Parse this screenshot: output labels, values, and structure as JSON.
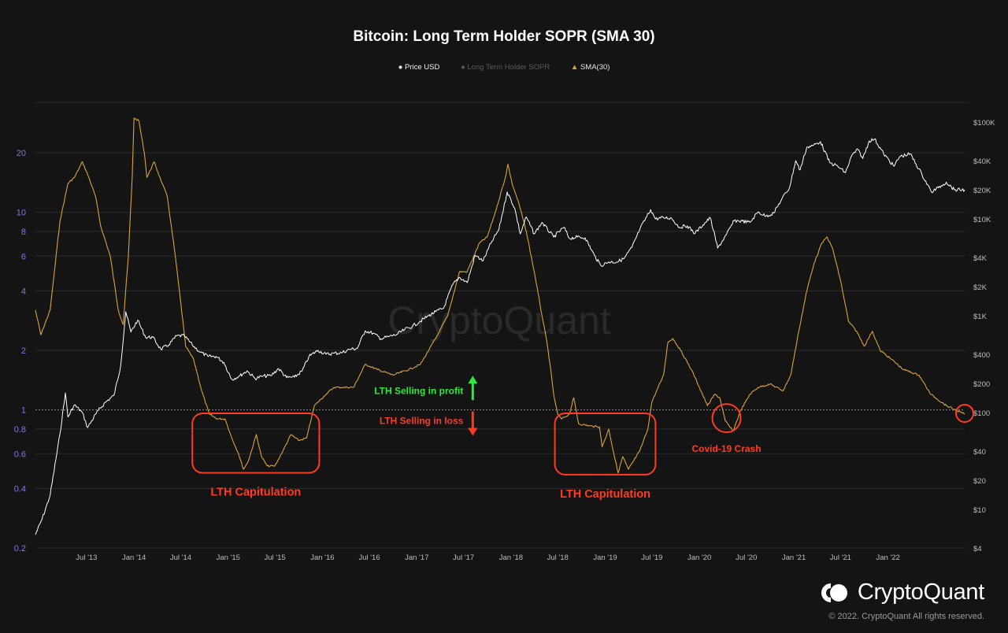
{
  "title": "Bitcoin: Long Term Holder SOPR (SMA 30)",
  "legend": {
    "price": "Price USD",
    "sopr": "Long Term Holder SOPR",
    "sma": "SMA(30)"
  },
  "brand": "CryptoQuant",
  "copyright": "© 2022. CryptoQuant All rights reserved.",
  "watermark": "CryptoQuant",
  "colors": {
    "background": "#141414",
    "grid": "#2c2c2c",
    "price_line": "#ffffff",
    "sma_line": "#d9a23c",
    "left_axis_labels": "#7f78e8",
    "annotation_red": "#ff3b22",
    "profit_green": "#2ee83c",
    "loss_red": "#ff3b22"
  },
  "chart_data": {
    "type": "line",
    "x_axis": {
      "ticks": [
        "Jul '13",
        "Jan '14",
        "Jul '14",
        "Jan '15",
        "Jul '15",
        "Jan '16",
        "Jul '16",
        "Jan '17",
        "Jul '17",
        "Jan '18",
        "Jul '18",
        "Jan '19",
        "Jul '19",
        "Jan '20",
        "Jul '20",
        "Jan '21",
        "Jul '21",
        "Jan '22"
      ],
      "range": [
        "2012-12-15",
        "2022-10-25"
      ]
    },
    "y_left": {
      "scale": "log",
      "ticks": [
        "20",
        "10",
        "8",
        "6",
        "4",
        "2",
        "1",
        "0.8",
        "0.6",
        "0.4",
        "0.2"
      ],
      "range": [
        0.2,
        36
      ]
    },
    "y_right": {
      "scale": "log",
      "ticks": [
        "$100K",
        "$40K",
        "$20K",
        "$10K",
        "$4K",
        "$2K",
        "$1K",
        "$400",
        "$200",
        "$100",
        "$40",
        "$20",
        "$10",
        "$4"
      ],
      "range": [
        4,
        160000
      ]
    },
    "reference_line": 1,
    "series": [
      {
        "name": "SMA(30)",
        "axis": "left",
        "points": [
          [
            "2012-12-15",
            3.2
          ],
          [
            "2013-01-05",
            2.4
          ],
          [
            "2013-02-10",
            3.2
          ],
          [
            "2013-03-20",
            9
          ],
          [
            "2013-04-20",
            14
          ],
          [
            "2013-05-15",
            15
          ],
          [
            "2013-06-15",
            18
          ],
          [
            "2013-07-10",
            15
          ],
          [
            "2013-08-05",
            12
          ],
          [
            "2013-08-25",
            8.5
          ],
          [
            "2013-10-01",
            6
          ],
          [
            "2013-11-01",
            3.2
          ],
          [
            "2013-11-20",
            2.7
          ],
          [
            "2013-12-10",
            6
          ],
          [
            "2013-12-25",
            15
          ],
          [
            "2014-01-01",
            30
          ],
          [
            "2014-01-20",
            29
          ],
          [
            "2014-02-10",
            20
          ],
          [
            "2014-02-20",
            15
          ],
          [
            "2014-03-20",
            18
          ],
          [
            "2014-04-20",
            14
          ],
          [
            "2014-05-10",
            12
          ],
          [
            "2014-06-10",
            6
          ],
          [
            "2014-07-01",
            3.5
          ],
          [
            "2014-07-20",
            2.1
          ],
          [
            "2014-08-20",
            1.8
          ],
          [
            "2014-09-20",
            1.25
          ],
          [
            "2014-10-20",
            0.95
          ],
          [
            "2014-11-20",
            0.9
          ],
          [
            "2014-12-20",
            0.9
          ],
          [
            "2015-01-15",
            0.72
          ],
          [
            "2015-02-10",
            0.6
          ],
          [
            "2015-03-01",
            0.5
          ],
          [
            "2015-03-20",
            0.55
          ],
          [
            "2015-04-20",
            0.75
          ],
          [
            "2015-05-10",
            0.58
          ],
          [
            "2015-06-01",
            0.52
          ],
          [
            "2015-07-01",
            0.52
          ],
          [
            "2015-08-01",
            0.62
          ],
          [
            "2015-09-01",
            0.75
          ],
          [
            "2015-10-01",
            0.7
          ],
          [
            "2015-11-01",
            0.72
          ],
          [
            "2015-12-01",
            1.05
          ],
          [
            "2016-01-15",
            1.2
          ],
          [
            "2016-02-15",
            1.3
          ],
          [
            "2016-03-20",
            1.3
          ],
          [
            "2016-05-01",
            1.3
          ],
          [
            "2016-06-15",
            1.7
          ],
          [
            "2016-08-01",
            1.6
          ],
          [
            "2016-10-01",
            1.5
          ],
          [
            "2016-12-01",
            1.6
          ],
          [
            "2017-01-15",
            1.7
          ],
          [
            "2017-03-15",
            2.3
          ],
          [
            "2017-05-01",
            3
          ],
          [
            "2017-06-15",
            5
          ],
          [
            "2017-07-15",
            5
          ],
          [
            "2017-09-01",
            7
          ],
          [
            "2017-10-01",
            7.5
          ],
          [
            "2017-11-01",
            10
          ],
          [
            "2017-12-10",
            15
          ],
          [
            "2017-12-20",
            17.5
          ],
          [
            "2018-01-05",
            14
          ],
          [
            "2018-02-01",
            11
          ],
          [
            "2018-03-01",
            8
          ],
          [
            "2018-04-01",
            5
          ],
          [
            "2018-05-01",
            3
          ],
          [
            "2018-05-20",
            2.2
          ],
          [
            "2018-06-01",
            1.7
          ],
          [
            "2018-06-15",
            1.2
          ],
          [
            "2018-07-01",
            0.95
          ],
          [
            "2018-07-15",
            0.9
          ],
          [
            "2018-08-15",
            0.95
          ],
          [
            "2018-09-01",
            1.15
          ],
          [
            "2018-09-20",
            0.85
          ],
          [
            "2018-11-01",
            0.83
          ],
          [
            "2018-12-10",
            0.82
          ],
          [
            "2018-12-20",
            0.65
          ],
          [
            "2019-01-15",
            0.8
          ],
          [
            "2019-02-01",
            0.62
          ],
          [
            "2019-02-20",
            0.48
          ],
          [
            "2019-03-10",
            0.58
          ],
          [
            "2019-04-01",
            0.5
          ],
          [
            "2019-05-15",
            0.62
          ],
          [
            "2019-06-15",
            0.8
          ],
          [
            "2019-07-01",
            1.1
          ],
          [
            "2019-08-15",
            1.5
          ],
          [
            "2019-09-01",
            2.2
          ],
          [
            "2019-09-20",
            2.3
          ],
          [
            "2019-10-20",
            2
          ],
          [
            "2019-12-01",
            1.6
          ],
          [
            "2020-01-01",
            1.3
          ],
          [
            "2020-02-01",
            1.05
          ],
          [
            "2020-03-01",
            1.2
          ],
          [
            "2020-03-20",
            1.15
          ],
          [
            "2020-04-10",
            0.88
          ],
          [
            "2020-05-10",
            0.78
          ],
          [
            "2020-06-10",
            1
          ],
          [
            "2020-07-15",
            1.2
          ],
          [
            "2020-08-15",
            1.3
          ],
          [
            "2020-10-01",
            1.35
          ],
          [
            "2020-11-20",
            1.25
          ],
          [
            "2020-12-20",
            1.5
          ],
          [
            "2021-01-20",
            2.5
          ],
          [
            "2021-02-20",
            4
          ],
          [
            "2021-03-20",
            5.5
          ],
          [
            "2021-04-20",
            7
          ],
          [
            "2021-05-10",
            7.5
          ],
          [
            "2021-06-01",
            6.5
          ],
          [
            "2021-07-01",
            4.5
          ],
          [
            "2021-08-01",
            2.8
          ],
          [
            "2021-09-01",
            2.5
          ],
          [
            "2021-10-01",
            2.1
          ],
          [
            "2021-11-01",
            2.5
          ],
          [
            "2021-12-01",
            2
          ],
          [
            "2022-01-15",
            1.8
          ],
          [
            "2022-03-01",
            1.6
          ],
          [
            "2022-05-01",
            1.5
          ],
          [
            "2022-06-15",
            1.2
          ],
          [
            "2022-08-15",
            1.05
          ],
          [
            "2022-10-25",
            0.95
          ]
        ]
      },
      {
        "name": "Price USD",
        "axis": "right",
        "points": [
          [
            "2012-12-15",
            5.5
          ],
          [
            "2013-01-10",
            8
          ],
          [
            "2013-02-10",
            14
          ],
          [
            "2013-03-20",
            60
          ],
          [
            "2013-04-10",
            160
          ],
          [
            "2013-04-20",
            90
          ],
          [
            "2013-05-15",
            120
          ],
          [
            "2013-06-15",
            100
          ],
          [
            "2013-07-05",
            70
          ],
          [
            "2013-08-15",
            105
          ],
          [
            "2013-09-15",
            130
          ],
          [
            "2013-10-15",
            150
          ],
          [
            "2013-11-10",
            300
          ],
          [
            "2013-11-30",
            1100
          ],
          [
            "2013-12-20",
            680
          ],
          [
            "2014-01-15",
            900
          ],
          [
            "2014-02-15",
            600
          ],
          [
            "2014-03-15",
            600
          ],
          [
            "2014-04-15",
            450
          ],
          [
            "2014-05-15",
            500
          ],
          [
            "2014-06-15",
            620
          ],
          [
            "2014-07-15",
            620
          ],
          [
            "2014-08-15",
            500
          ],
          [
            "2014-09-15",
            420
          ],
          [
            "2014-10-15",
            380
          ],
          [
            "2014-11-15",
            380
          ],
          [
            "2014-12-15",
            330
          ],
          [
            "2015-01-15",
            220
          ],
          [
            "2015-02-15",
            240
          ],
          [
            "2015-03-15",
            270
          ],
          [
            "2015-04-15",
            225
          ],
          [
            "2015-05-15",
            238
          ],
          [
            "2015-06-15",
            240
          ],
          [
            "2015-07-15",
            285
          ],
          [
            "2015-08-15",
            230
          ],
          [
            "2015-09-15",
            232
          ],
          [
            "2015-10-15",
            270
          ],
          [
            "2015-11-10",
            380
          ],
          [
            "2015-12-15",
            440
          ],
          [
            "2016-01-15",
            400
          ],
          [
            "2016-02-15",
            410
          ],
          [
            "2016-03-15",
            415
          ],
          [
            "2016-04-15",
            450
          ],
          [
            "2016-05-15",
            460
          ],
          [
            "2016-06-15",
            700
          ],
          [
            "2016-07-15",
            660
          ],
          [
            "2016-08-15",
            580
          ],
          [
            "2016-09-15",
            610
          ],
          [
            "2016-10-15",
            640
          ],
          [
            "2016-11-15",
            720
          ],
          [
            "2016-12-15",
            780
          ],
          [
            "2017-01-15",
            880
          ],
          [
            "2017-02-15",
            1000
          ],
          [
            "2017-03-15",
            1100
          ],
          [
            "2017-04-15",
            1200
          ],
          [
            "2017-05-20",
            2100
          ],
          [
            "2017-06-15",
            2500
          ],
          [
            "2017-07-15",
            2200
          ],
          [
            "2017-08-15",
            4200
          ],
          [
            "2017-09-15",
            3700
          ],
          [
            "2017-10-15",
            5600
          ],
          [
            "2017-11-15",
            7800
          ],
          [
            "2017-12-17",
            19000
          ],
          [
            "2018-01-15",
            13000
          ],
          [
            "2018-02-06",
            7000
          ],
          [
            "2018-03-01",
            10500
          ],
          [
            "2018-04-01",
            7000
          ],
          [
            "2018-05-01",
            9200
          ],
          [
            "2018-06-15",
            6500
          ],
          [
            "2018-07-25",
            8200
          ],
          [
            "2018-08-15",
            6300
          ],
          [
            "2018-09-15",
            6500
          ],
          [
            "2018-10-15",
            6400
          ],
          [
            "2018-11-20",
            4200
          ],
          [
            "2018-12-15",
            3300
          ],
          [
            "2019-01-15",
            3600
          ],
          [
            "2019-02-15",
            3600
          ],
          [
            "2019-03-15",
            3900
          ],
          [
            "2019-04-15",
            5100
          ],
          [
            "2019-05-15",
            7800
          ],
          [
            "2019-06-26",
            12500
          ],
          [
            "2019-07-15",
            10000
          ],
          [
            "2019-08-15",
            10300
          ],
          [
            "2019-09-15",
            10200
          ],
          [
            "2019-10-15",
            8200
          ],
          [
            "2019-11-15",
            8500
          ],
          [
            "2019-12-15",
            7100
          ],
          [
            "2020-01-15",
            8700
          ],
          [
            "2020-02-12",
            10300
          ],
          [
            "2020-03-12",
            5000
          ],
          [
            "2020-04-15",
            6900
          ],
          [
            "2020-05-15",
            9600
          ],
          [
            "2020-06-15",
            9500
          ],
          [
            "2020-07-15",
            9200
          ],
          [
            "2020-08-15",
            11800
          ],
          [
            "2020-09-15",
            10700
          ],
          [
            "2020-10-15",
            11500
          ],
          [
            "2020-11-15",
            16000
          ],
          [
            "2020-12-15",
            21000
          ],
          [
            "2021-01-08",
            40000
          ],
          [
            "2021-01-25",
            32000
          ],
          [
            "2021-02-20",
            55000
          ],
          [
            "2021-03-15",
            57000
          ],
          [
            "2021-04-14",
            63000
          ],
          [
            "2021-05-20",
            38000
          ],
          [
            "2021-06-20",
            35000
          ],
          [
            "2021-07-20",
            30000
          ],
          [
            "2021-08-15",
            46000
          ],
          [
            "2021-09-07",
            52000
          ],
          [
            "2021-09-25",
            42000
          ],
          [
            "2021-10-20",
            64000
          ],
          [
            "2021-11-10",
            67000
          ],
          [
            "2021-12-15",
            47000
          ],
          [
            "2022-01-24",
            35000
          ],
          [
            "2022-02-15",
            44000
          ],
          [
            "2022-03-28",
            47000
          ],
          [
            "2022-05-12",
            29000
          ],
          [
            "2022-06-18",
            19000
          ],
          [
            "2022-07-15",
            21000
          ],
          [
            "2022-08-15",
            24000
          ],
          [
            "2022-09-15",
            20000
          ],
          [
            "2022-10-25",
            20000
          ]
        ]
      }
    ],
    "annotations": [
      {
        "text": "LTH Capitulation",
        "from": "2014-08-15",
        "to": "2015-12-20",
        "low": 0.48,
        "high": 0.96
      },
      {
        "text": "LTH Capitulation",
        "from": "2018-06-20",
        "to": "2019-07-15",
        "low": 0.47,
        "high": 0.96
      },
      {
        "text": "Covid-19 Crash",
        "date": "2020-04-15",
        "value": 0.9
      },
      {
        "text": "",
        "date": "2022-10-25",
        "value": 0.96
      },
      {
        "text": "LTH Selling in profit",
        "date": "2017-01-01",
        "value": 1.25,
        "arrow": "up"
      },
      {
        "text": "LTH Selling in loss",
        "date": "2017-01-01",
        "value": 0.88,
        "arrow": "down"
      }
    ]
  }
}
